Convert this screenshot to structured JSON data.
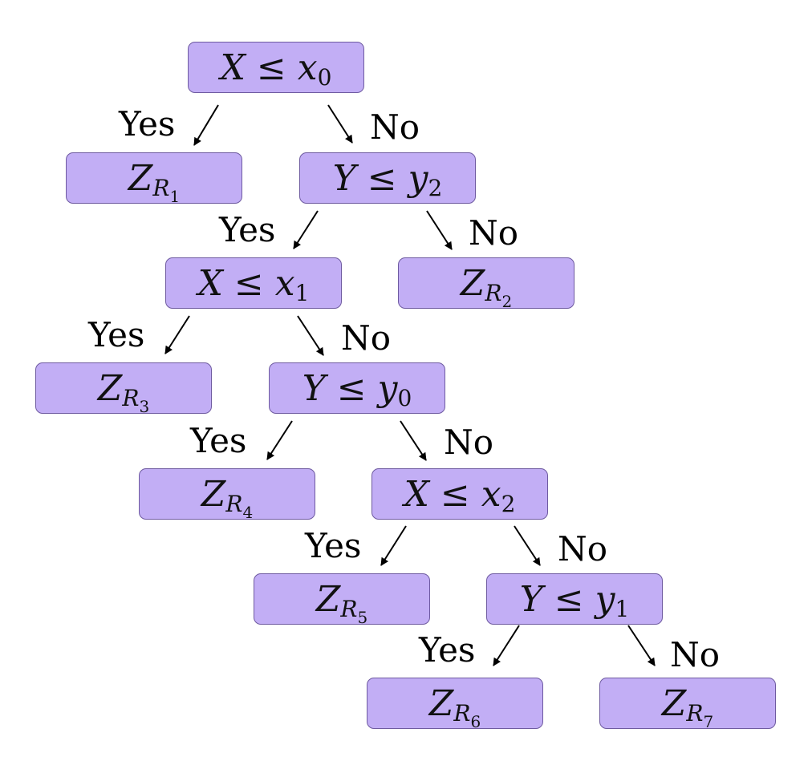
{
  "labels": {
    "yes": "Yes",
    "no": "No"
  },
  "colors": {
    "node_fill": "#c2aef5",
    "node_border": "#6e5aa0",
    "arrow": "#000000"
  },
  "decisions": [
    {
      "id": "d0",
      "var": "X",
      "op": "≤",
      "thr": "x",
      "idx": "0"
    },
    {
      "id": "d1",
      "var": "Y",
      "op": "≤",
      "thr": "y",
      "idx": "2"
    },
    {
      "id": "d2",
      "var": "X",
      "op": "≤",
      "thr": "x",
      "idx": "1"
    },
    {
      "id": "d3",
      "var": "Y",
      "op": "≤",
      "thr": "y",
      "idx": "0"
    },
    {
      "id": "d4",
      "var": "X",
      "op": "≤",
      "thr": "x",
      "idx": "2"
    },
    {
      "id": "d5",
      "var": "Y",
      "op": "≤",
      "thr": "y",
      "idx": "1"
    }
  ],
  "leaves": [
    {
      "id": "l1",
      "sym": "Z",
      "sub": "R",
      "idx": "1"
    },
    {
      "id": "l2",
      "sym": "Z",
      "sub": "R",
      "idx": "2"
    },
    {
      "id": "l3",
      "sym": "Z",
      "sub": "R",
      "idx": "3"
    },
    {
      "id": "l4",
      "sym": "Z",
      "sub": "R",
      "idx": "4"
    },
    {
      "id": "l5",
      "sym": "Z",
      "sub": "R",
      "idx": "5"
    },
    {
      "id": "l6",
      "sym": "Z",
      "sub": "R",
      "idx": "6"
    },
    {
      "id": "l7",
      "sym": "Z",
      "sub": "R",
      "idx": "7"
    }
  ]
}
